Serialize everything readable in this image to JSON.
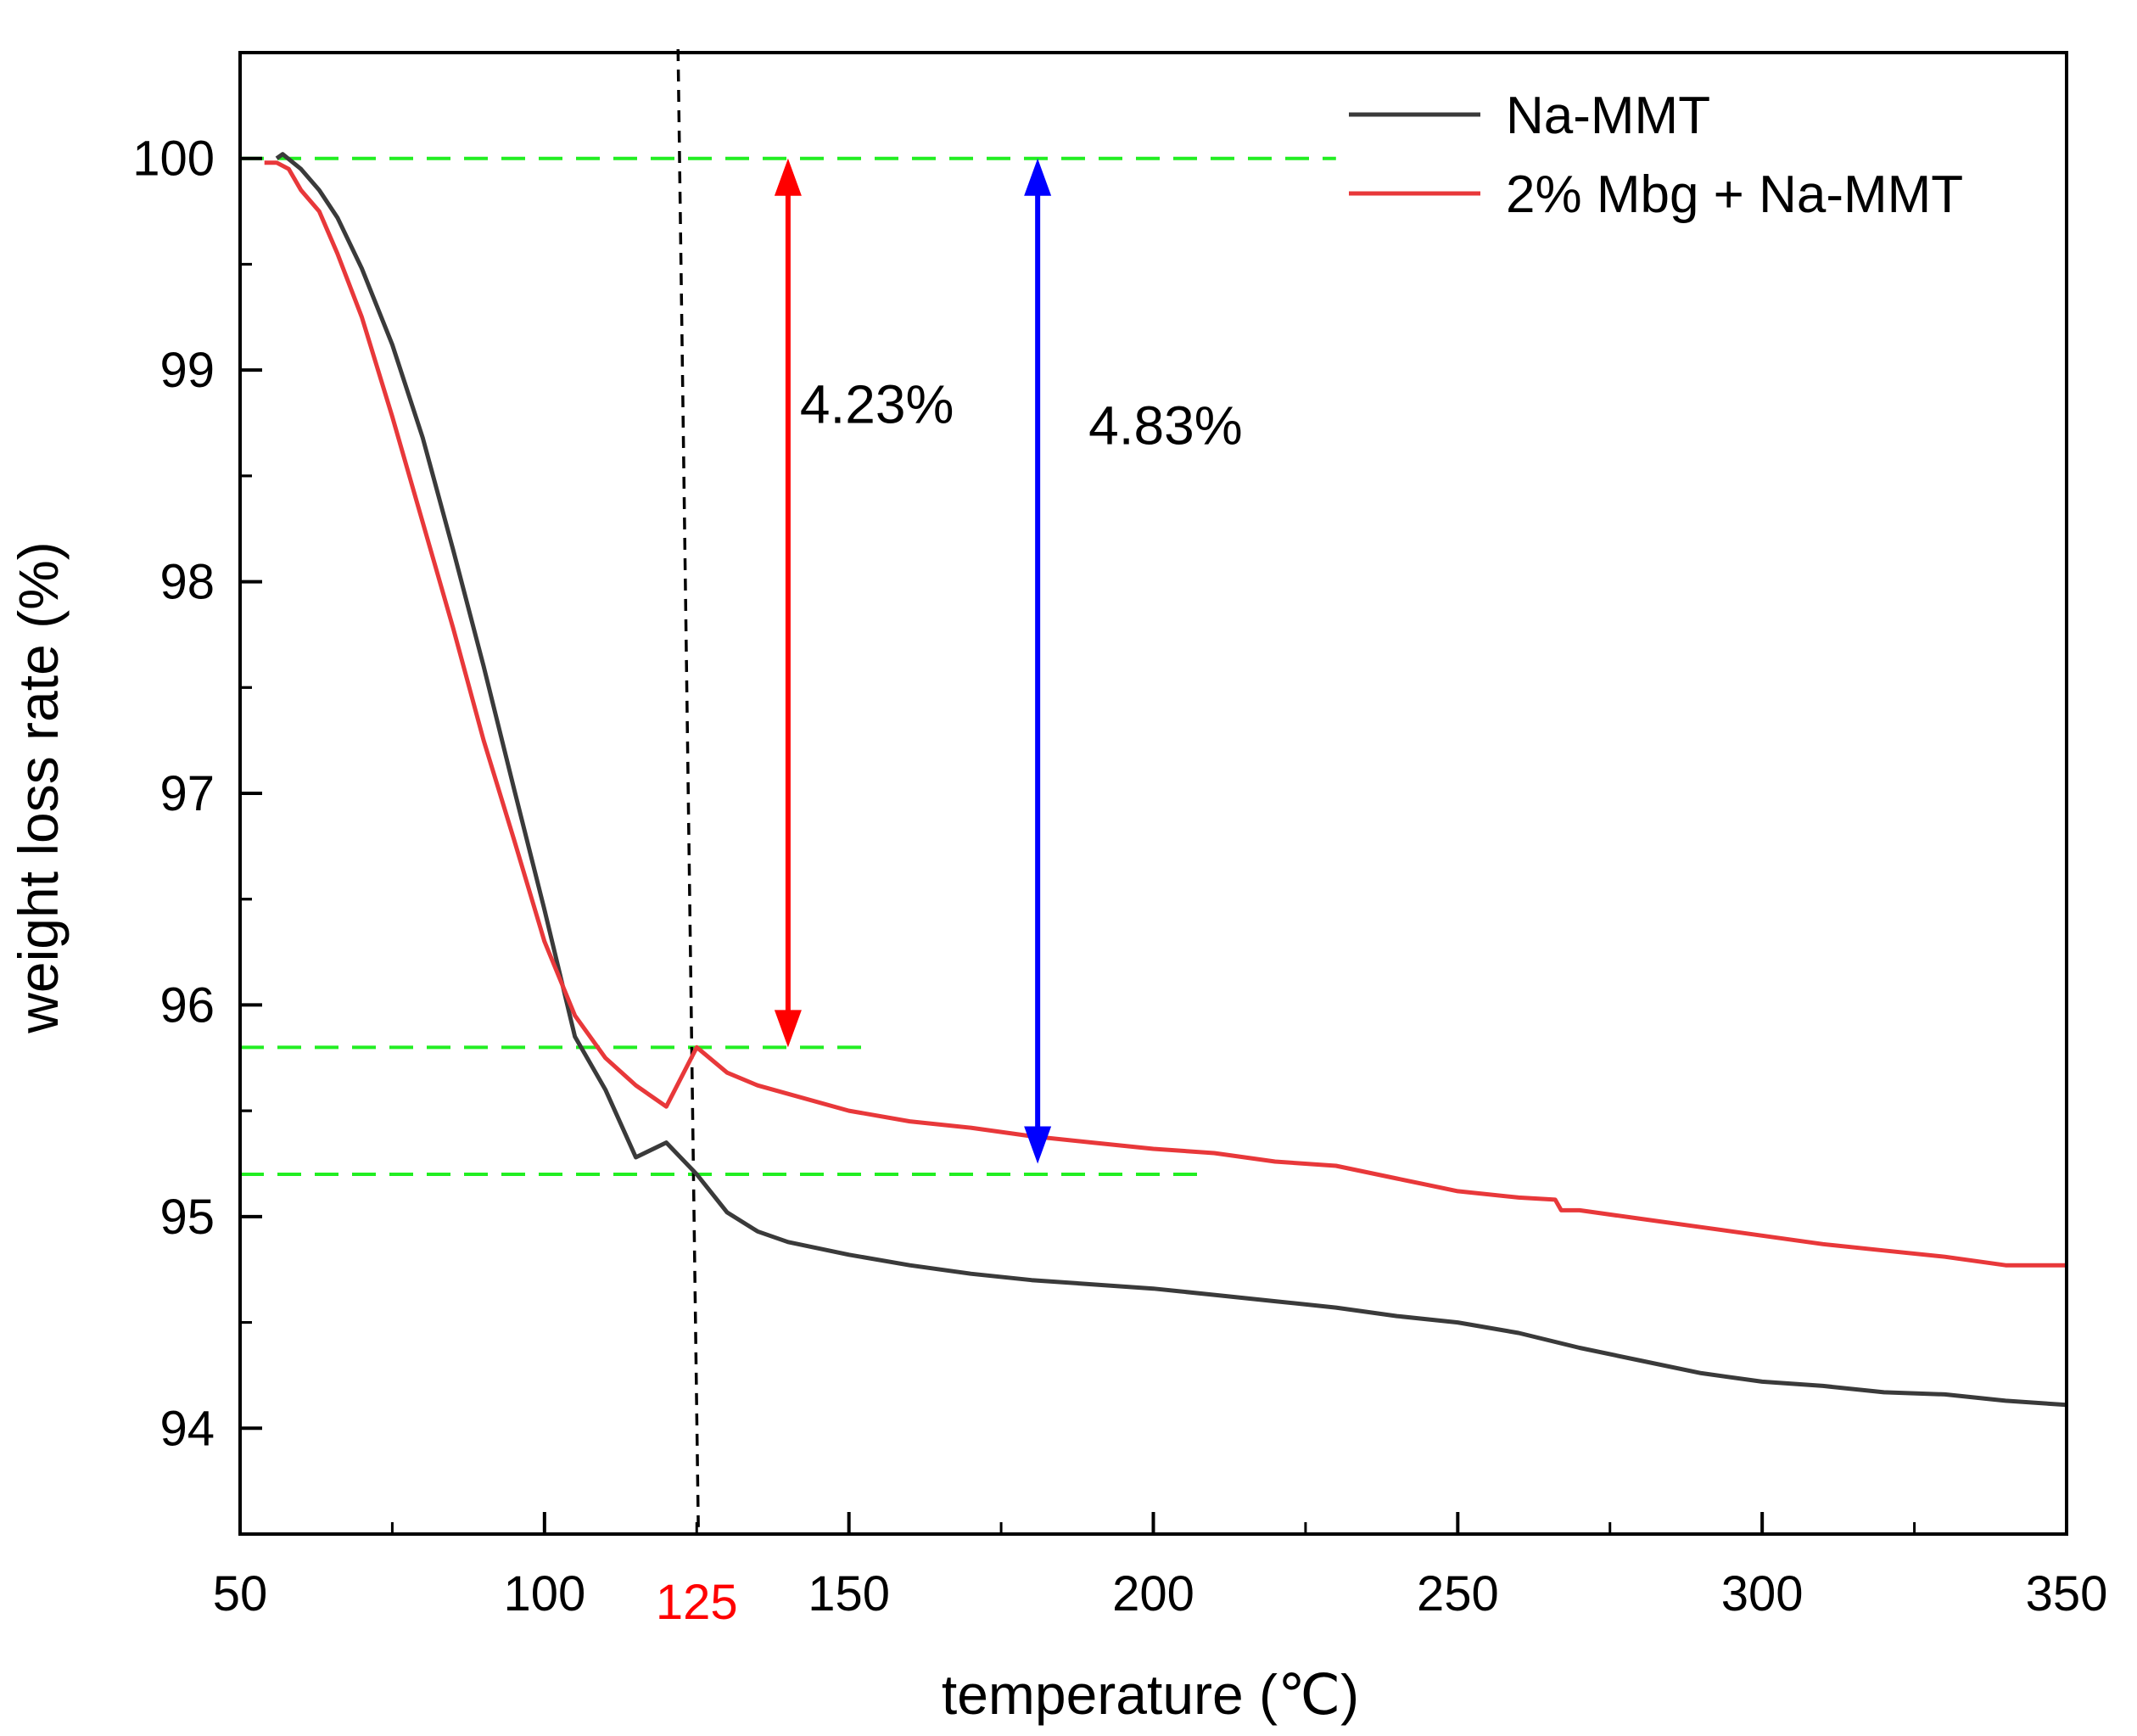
{
  "chart_data": {
    "type": "line",
    "title": "",
    "xlabel": "temperature (℃)",
    "ylabel": "weight loss rate (%)",
    "xlim": [
      50,
      350
    ],
    "ylim": [
      93.5,
      100.5
    ],
    "x_ticks": [
      50,
      100,
      150,
      200,
      250,
      300,
      350
    ],
    "x_tick_labels": [
      "50",
      "100",
      "150",
      "200",
      "250",
      "300",
      "350"
    ],
    "y_ticks": [
      94,
      95,
      96,
      97,
      98,
      99,
      100
    ],
    "y_tick_labels": [
      "94",
      "95",
      "96",
      "97",
      "98",
      "99",
      "100"
    ],
    "x_highlight_label": "125",
    "x_highlight_value": 125,
    "legend_position": "top-right",
    "series": [
      {
        "name": "Na-MMT",
        "color": "#3a3a3a",
        "points": [
          [
            56,
            100.0
          ],
          [
            57,
            100.02
          ],
          [
            60,
            99.95
          ],
          [
            63,
            99.85
          ],
          [
            66,
            99.72
          ],
          [
            70,
            99.48
          ],
          [
            75,
            99.12
          ],
          [
            80,
            98.68
          ],
          [
            85,
            98.15
          ],
          [
            90,
            97.6
          ],
          [
            95,
            97.02
          ],
          [
            100,
            96.45
          ],
          [
            105,
            95.85
          ],
          [
            110,
            95.6
          ],
          [
            115,
            95.28
          ],
          [
            120,
            95.35
          ],
          [
            125,
            95.2
          ],
          [
            130,
            95.02
          ],
          [
            135,
            94.93
          ],
          [
            140,
            94.88
          ],
          [
            150,
            94.82
          ],
          [
            160,
            94.77
          ],
          [
            170,
            94.73
          ],
          [
            180,
            94.7
          ],
          [
            190,
            94.68
          ],
          [
            200,
            94.66
          ],
          [
            210,
            94.63
          ],
          [
            220,
            94.6
          ],
          [
            230,
            94.57
          ],
          [
            240,
            94.53
          ],
          [
            250,
            94.5
          ],
          [
            260,
            94.45
          ],
          [
            270,
            94.38
          ],
          [
            280,
            94.32
          ],
          [
            290,
            94.26
          ],
          [
            300,
            94.22
          ],
          [
            310,
            94.2
          ],
          [
            320,
            94.17
          ],
          [
            330,
            94.16
          ],
          [
            340,
            94.13
          ],
          [
            350,
            94.11
          ]
        ]
      },
      {
        "name": "2% Mbg + Na-MMT",
        "color": "#e8383a",
        "points": [
          [
            54,
            99.98
          ],
          [
            56,
            99.98
          ],
          [
            58,
            99.95
          ],
          [
            60,
            99.85
          ],
          [
            63,
            99.75
          ],
          [
            66,
            99.55
          ],
          [
            70,
            99.25
          ],
          [
            75,
            98.78
          ],
          [
            80,
            98.28
          ],
          [
            85,
            97.78
          ],
          [
            90,
            97.25
          ],
          [
            95,
            96.78
          ],
          [
            100,
            96.3
          ],
          [
            105,
            95.95
          ],
          [
            110,
            95.75
          ],
          [
            115,
            95.62
          ],
          [
            120,
            95.52
          ],
          [
            125,
            95.8
          ],
          [
            130,
            95.68
          ],
          [
            135,
            95.62
          ],
          [
            140,
            95.58
          ],
          [
            150,
            95.5
          ],
          [
            160,
            95.45
          ],
          [
            170,
            95.42
          ],
          [
            180,
            95.38
          ],
          [
            190,
            95.35
          ],
          [
            200,
            95.32
          ],
          [
            210,
            95.3
          ],
          [
            220,
            95.26
          ],
          [
            230,
            95.24
          ],
          [
            240,
            95.18
          ],
          [
            250,
            95.12
          ],
          [
            260,
            95.09
          ],
          [
            266,
            95.08
          ],
          [
            267,
            95.03
          ],
          [
            270,
            95.03
          ],
          [
            280,
            94.99
          ],
          [
            290,
            94.95
          ],
          [
            300,
            94.91
          ],
          [
            310,
            94.87
          ],
          [
            320,
            94.84
          ],
          [
            330,
            94.81
          ],
          [
            340,
            94.77
          ],
          [
            350,
            94.77
          ]
        ]
      }
    ],
    "reference_lines": [
      {
        "name": "ref-100",
        "y": 100.0,
        "x_from": 50,
        "x_to": 230,
        "color": "#22ee22"
      },
      {
        "name": "ref-95.8",
        "y": 95.8,
        "x_from": 50,
        "x_to": 152,
        "color": "#22ee22"
      },
      {
        "name": "ref-95.2",
        "y": 95.2,
        "x_from": 50,
        "x_to": 208,
        "color": "#22ee22"
      },
      {
        "name": "ref-125",
        "x": 125,
        "color": "#000000"
      }
    ],
    "annotations": [
      {
        "name": "arrow-red",
        "text": "4.23%",
        "x": 140,
        "y_top": 100.0,
        "y_bottom": 95.8,
        "color": "#ff0000"
      },
      {
        "name": "arrow-blue",
        "text": "4.83%",
        "x": 181,
        "y_top": 100.0,
        "y_bottom": 95.25,
        "color": "#0000ff"
      }
    ]
  }
}
